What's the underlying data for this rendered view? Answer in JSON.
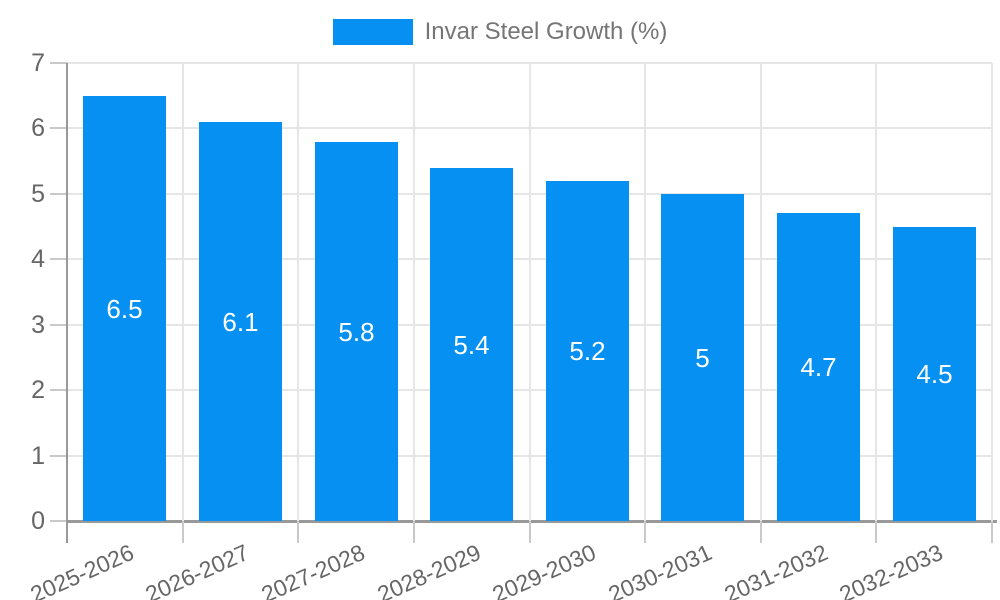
{
  "chart_data": {
    "type": "bar",
    "title": "",
    "xlabel": "",
    "ylabel": "",
    "legend": {
      "position": "top-center",
      "entries": [
        "Invar Steel Growth (%)"
      ]
    },
    "series": [
      {
        "name": "Invar Steel Growth (%)",
        "values": [
          6.5,
          6.1,
          5.8,
          5.4,
          5.2,
          5,
          4.7,
          4.5
        ],
        "value_labels": [
          "6.5",
          "6.1",
          "5.8",
          "5.4",
          "5.2",
          "5",
          "4.7",
          "4.5"
        ],
        "color": "#0691f2"
      }
    ],
    "categories": [
      "2025-2026",
      "2026-2027",
      "2027-2028",
      "2028-2029",
      "2029-2030",
      "2030-2031",
      "2031-2032",
      "2032-2033"
    ],
    "ylim": [
      0,
      7
    ],
    "ytick_labels": [
      "0",
      "1",
      "2",
      "3",
      "4",
      "5",
      "6",
      "7"
    ],
    "grid": true,
    "x_label_rotation_deg": -24,
    "colors": {
      "bar": "#0691f2",
      "gridline": "#e6e6e6",
      "axis_line": "#999999",
      "tick": "#c9c9c9",
      "axis_text": "#666666",
      "legend_text": "#757575",
      "bar_value_text": "#ffffff",
      "background": "#ffffff"
    }
  }
}
